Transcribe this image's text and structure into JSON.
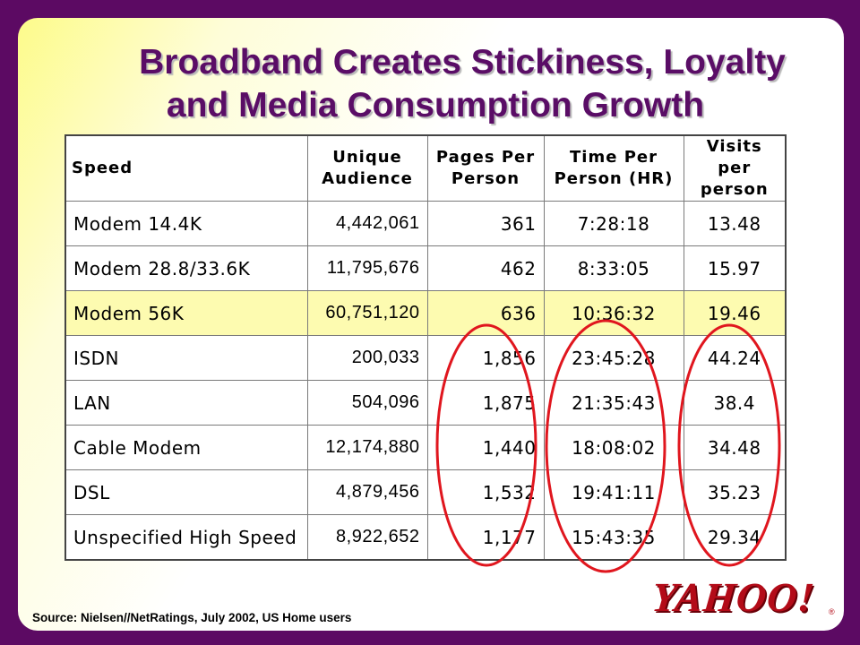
{
  "slide": {
    "title_line1": "Broadband Creates Stickiness, Loyalty",
    "title_line2": "and Media Consumption Growth",
    "source": "Source: Nielsen//NetRatings, July 2002, US Home users",
    "logo": "YAHOO!",
    "logo_reg": "®"
  },
  "colors": {
    "background": "#5c0a63",
    "title": "#5a0d66",
    "highlight_row": "#fdfbb0",
    "circle": "#e0161e",
    "logo": "#b30b18"
  },
  "table": {
    "headers": {
      "speed": "Speed",
      "audience_1": "Unique",
      "audience_2": "Audience",
      "pages_1": "Pages Per",
      "pages_2": "Person",
      "time_1": "Time Per",
      "time_2": "Person (HR)",
      "visits_1": "Visits per",
      "visits_2": "person"
    },
    "rows": [
      {
        "speed": "Modem 14.4K",
        "audience": "4,442,061",
        "pages": "361",
        "time": "7:28:18",
        "visits": "13.48"
      },
      {
        "speed": "Modem 28.8/33.6K",
        "audience": "11,795,676",
        "pages": "462",
        "time": "8:33:05",
        "visits": "15.97"
      },
      {
        "speed": "Modem 56K",
        "audience": "60,751,120",
        "pages": "636",
        "time": "10:36:32",
        "visits": "19.46"
      },
      {
        "speed": "ISDN",
        "audience": "200,033",
        "pages": "1,856",
        "time": "23:45:28",
        "visits": "44.24"
      },
      {
        "speed": "LAN",
        "audience": "504,096",
        "pages": "1,875",
        "time": "21:35:43",
        "visits": "38.4"
      },
      {
        "speed": "Cable Modem",
        "audience": "12,174,880",
        "pages": "1,440",
        "time": "18:08:02",
        "visits": "34.48"
      },
      {
        "speed": "DSL",
        "audience": "4,879,456",
        "pages": "1,532",
        "time": "19:41:11",
        "visits": "35.23"
      },
      {
        "speed": "Unspecified High Speed",
        "audience": "8,922,652",
        "pages": "1,177",
        "time": "15:43:35",
        "visits": "29.34"
      }
    ]
  }
}
